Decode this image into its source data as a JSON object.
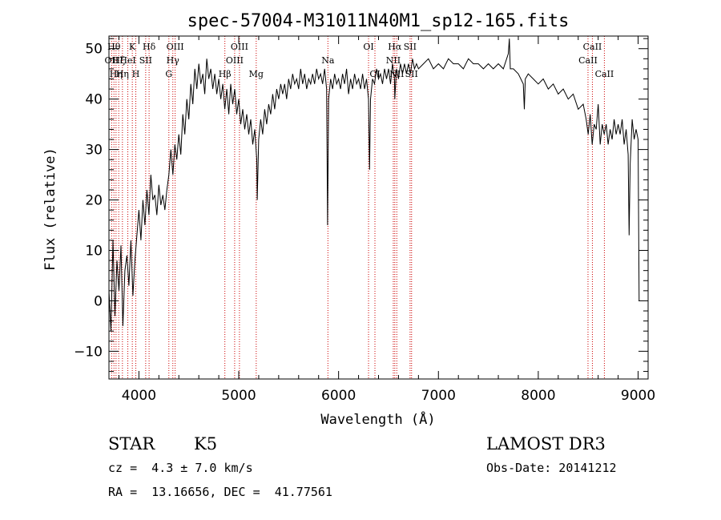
{
  "chart_data": {
    "type": "line",
    "title": "spec-57004-M31011N40M1_sp12-165.fits",
    "xlabel": "Wavelength (Å)",
    "ylabel": "Flux (relative)",
    "xlim": [
      3700,
      9100
    ],
    "ylim": [
      -15.5,
      52.5
    ],
    "xticks": [
      4000,
      5000,
      6000,
      7000,
      8000,
      9000
    ],
    "xtick_labels": [
      "4000",
      "5000",
      "6000",
      "7000",
      "8000",
      "9000"
    ],
    "yticks": [
      -10,
      0,
      10,
      20,
      30,
      40,
      50
    ],
    "ytick_labels": [
      "−10",
      "0",
      "10",
      "20",
      "30",
      "40",
      "50"
    ],
    "series": [
      {
        "name": "flux",
        "color": "#000000",
        "points": [
          [
            3700,
            2
          ],
          [
            3720,
            -6
          ],
          [
            3740,
            12
          ],
          [
            3760,
            -3
          ],
          [
            3780,
            8
          ],
          [
            3800,
            2
          ],
          [
            3820,
            11
          ],
          [
            3840,
            -5
          ],
          [
            3860,
            6
          ],
          [
            3880,
            9
          ],
          [
            3900,
            3
          ],
          [
            3920,
            12
          ],
          [
            3940,
            1
          ],
          [
            3960,
            8
          ],
          [
            3980,
            13
          ],
          [
            4000,
            18
          ],
          [
            4020,
            12
          ],
          [
            4040,
            20
          ],
          [
            4060,
            15
          ],
          [
            4080,
            22
          ],
          [
            4100,
            17
          ],
          [
            4120,
            25
          ],
          [
            4140,
            20
          ],
          [
            4160,
            21
          ],
          [
            4180,
            17
          ],
          [
            4200,
            23
          ],
          [
            4220,
            19
          ],
          [
            4240,
            21
          ],
          [
            4260,
            18
          ],
          [
            4280,
            22
          ],
          [
            4300,
            25
          ],
          [
            4320,
            30
          ],
          [
            4340,
            25
          ],
          [
            4360,
            31
          ],
          [
            4380,
            28
          ],
          [
            4400,
            33
          ],
          [
            4420,
            29
          ],
          [
            4440,
            37
          ],
          [
            4460,
            33
          ],
          [
            4480,
            40
          ],
          [
            4500,
            36
          ],
          [
            4520,
            43
          ],
          [
            4540,
            39
          ],
          [
            4560,
            46
          ],
          [
            4580,
            42
          ],
          [
            4600,
            47
          ],
          [
            4620,
            43
          ],
          [
            4640,
            45
          ],
          [
            4660,
            41
          ],
          [
            4680,
            48
          ],
          [
            4700,
            44
          ],
          [
            4720,
            46
          ],
          [
            4740,
            42
          ],
          [
            4760,
            45
          ],
          [
            4780,
            41
          ],
          [
            4800,
            44
          ],
          [
            4820,
            40
          ],
          [
            4840,
            43
          ],
          [
            4860,
            38
          ],
          [
            4880,
            42
          ],
          [
            4900,
            37
          ],
          [
            4920,
            43
          ],
          [
            4940,
            39
          ],
          [
            4960,
            42
          ],
          [
            4980,
            37
          ],
          [
            5000,
            40
          ],
          [
            5020,
            35
          ],
          [
            5040,
            38
          ],
          [
            5060,
            34
          ],
          [
            5080,
            37
          ],
          [
            5100,
            33
          ],
          [
            5120,
            36
          ],
          [
            5140,
            31
          ],
          [
            5160,
            34
          ],
          [
            5180,
            28
          ],
          [
            5185,
            20
          ],
          [
            5200,
            32
          ],
          [
            5220,
            36
          ],
          [
            5240,
            33
          ],
          [
            5260,
            38
          ],
          [
            5280,
            35
          ],
          [
            5300,
            39
          ],
          [
            5320,
            37
          ],
          [
            5340,
            41
          ],
          [
            5360,
            38
          ],
          [
            5380,
            42
          ],
          [
            5400,
            40
          ],
          [
            5420,
            43
          ],
          [
            5440,
            41
          ],
          [
            5460,
            43
          ],
          [
            5480,
            40
          ],
          [
            5500,
            44
          ],
          [
            5520,
            42
          ],
          [
            5540,
            45
          ],
          [
            5560,
            43
          ],
          [
            5580,
            44
          ],
          [
            5600,
            42
          ],
          [
            5620,
            46
          ],
          [
            5640,
            43
          ],
          [
            5660,
            45
          ],
          [
            5680,
            42
          ],
          [
            5700,
            44
          ],
          [
            5720,
            43
          ],
          [
            5740,
            45
          ],
          [
            5760,
            43
          ],
          [
            5780,
            46
          ],
          [
            5800,
            44
          ],
          [
            5820,
            45
          ],
          [
            5840,
            43
          ],
          [
            5860,
            46
          ],
          [
            5880,
            42
          ],
          [
            5890,
            15
          ],
          [
            5900,
            40
          ],
          [
            5920,
            44
          ],
          [
            5940,
            42
          ],
          [
            5960,
            45
          ],
          [
            5980,
            43
          ],
          [
            6000,
            44
          ],
          [
            6020,
            42
          ],
          [
            6040,
            45
          ],
          [
            6060,
            43
          ],
          [
            6080,
            46
          ],
          [
            6100,
            41
          ],
          [
            6120,
            44
          ],
          [
            6140,
            42
          ],
          [
            6160,
            45
          ],
          [
            6180,
            43
          ],
          [
            6200,
            44
          ],
          [
            6220,
            42
          ],
          [
            6240,
            45
          ],
          [
            6260,
            42
          ],
          [
            6280,
            44
          ],
          [
            6300,
            40
          ],
          [
            6310,
            26
          ],
          [
            6320,
            40
          ],
          [
            6340,
            44
          ],
          [
            6360,
            43
          ],
          [
            6380,
            46
          ],
          [
            6400,
            44
          ],
          [
            6420,
            45
          ],
          [
            6440,
            43
          ],
          [
            6460,
            46
          ],
          [
            6480,
            44
          ],
          [
            6500,
            46
          ],
          [
            6520,
            43
          ],
          [
            6540,
            47
          ],
          [
            6560,
            44
          ],
          [
            6563,
            40
          ],
          [
            6580,
            46
          ],
          [
            6600,
            44
          ],
          [
            6620,
            47
          ],
          [
            6640,
            45
          ],
          [
            6660,
            47
          ],
          [
            6680,
            45
          ],
          [
            6700,
            47
          ],
          [
            6720,
            45
          ],
          [
            6740,
            48
          ],
          [
            6760,
            46
          ],
          [
            6780,
            47
          ],
          [
            6800,
            46
          ],
          [
            6850,
            47
          ],
          [
            6900,
            48
          ],
          [
            6950,
            46
          ],
          [
            7000,
            47
          ],
          [
            7050,
            46
          ],
          [
            7100,
            48
          ],
          [
            7150,
            47
          ],
          [
            7200,
            47
          ],
          [
            7250,
            46
          ],
          [
            7300,
            48
          ],
          [
            7350,
            47
          ],
          [
            7400,
            47
          ],
          [
            7450,
            46
          ],
          [
            7500,
            47
          ],
          [
            7550,
            46
          ],
          [
            7600,
            47
          ],
          [
            7650,
            46
          ],
          [
            7700,
            49
          ],
          [
            7710,
            52
          ],
          [
            7720,
            46
          ],
          [
            7750,
            46
          ],
          [
            7800,
            45
          ],
          [
            7850,
            43
          ],
          [
            7860,
            38
          ],
          [
            7870,
            44
          ],
          [
            7900,
            45
          ],
          [
            7950,
            44
          ],
          [
            8000,
            43
          ],
          [
            8050,
            44
          ],
          [
            8100,
            42
          ],
          [
            8150,
            43
          ],
          [
            8200,
            41
          ],
          [
            8250,
            42
          ],
          [
            8300,
            40
          ],
          [
            8350,
            41
          ],
          [
            8400,
            38
          ],
          [
            8450,
            39
          ],
          [
            8480,
            36
          ],
          [
            8500,
            33
          ],
          [
            8520,
            37
          ],
          [
            8540,
            31
          ],
          [
            8560,
            35
          ],
          [
            8580,
            34
          ],
          [
            8600,
            39
          ],
          [
            8620,
            31
          ],
          [
            8640,
            35
          ],
          [
            8660,
            33
          ],
          [
            8680,
            35
          ],
          [
            8700,
            31
          ],
          [
            8720,
            34
          ],
          [
            8740,
            32
          ],
          [
            8760,
            36
          ],
          [
            8780,
            33
          ],
          [
            8800,
            35
          ],
          [
            8820,
            33
          ],
          [
            8840,
            36
          ],
          [
            8860,
            31
          ],
          [
            8880,
            34
          ],
          [
            8900,
            29
          ],
          [
            8910,
            13
          ],
          [
            8920,
            27
          ],
          [
            8940,
            36
          ],
          [
            8960,
            32
          ],
          [
            8980,
            34
          ],
          [
            9000,
            32
          ],
          [
            9010,
            0
          ]
        ]
      }
    ],
    "line_color": "#000000",
    "marker_color": "#cc0000",
    "line_markers": [
      {
        "wavelength": 3727,
        "label": "OII",
        "row": 2
      },
      {
        "wavelength": 3750,
        "label": "Hθ",
        "row": 1
      },
      {
        "wavelength": 3771,
        "label": "Hη",
        "row": 3
      },
      {
        "wavelength": 3798,
        "label": "Hζ",
        "row": 2
      },
      {
        "wavelength": 3835,
        "label": "Hη",
        "row": 3
      },
      {
        "wavelength": 3889,
        "label": "HeI",
        "row": 2
      },
      {
        "wavelength": 3934,
        "label": "K",
        "row": 1
      },
      {
        "wavelength": 3969,
        "label": "H",
        "row": 3
      },
      {
        "wavelength": 4068,
        "label": "SII",
        "row": 2
      },
      {
        "wavelength": 4102,
        "label": "Hδ",
        "row": 1
      },
      {
        "wavelength": 4300,
        "label": "G",
        "row": 3
      },
      {
        "wavelength": 4340,
        "label": "Hγ",
        "row": 2
      },
      {
        "wavelength": 4363,
        "label": "OIII",
        "row": 1
      },
      {
        "wavelength": 4861,
        "label": "Hβ",
        "row": 3
      },
      {
        "wavelength": 4959,
        "label": "OIII",
        "row": 2
      },
      {
        "wavelength": 5007,
        "label": "OIII",
        "row": 1
      },
      {
        "wavelength": 5175,
        "label": "Mg",
        "row": 3
      },
      {
        "wavelength": 5893,
        "label": "Na",
        "row": 2
      },
      {
        "wavelength": 6300,
        "label": "OI",
        "row": 1
      },
      {
        "wavelength": 6364,
        "label": "OI",
        "row": 3
      },
      {
        "wavelength": 6548,
        "label": "NII",
        "row": 2
      },
      {
        "wavelength": 6563,
        "label": "Hα",
        "row": 1
      },
      {
        "wavelength": 6583,
        "label": "NII",
        "row": 3
      },
      {
        "wavelength": 6716,
        "label": "SII",
        "row": 1
      },
      {
        "wavelength": 6731,
        "label": "SII",
        "row": 3
      },
      {
        "wavelength": 8498,
        "label": "CaII",
        "row": 2
      },
      {
        "wavelength": 8542,
        "label": "CaII",
        "row": 1
      },
      {
        "wavelength": 8662,
        "label": "CaII",
        "row": 3
      }
    ]
  },
  "info": {
    "object_class": "STAR",
    "subclass": "K5",
    "survey": "LAMOST DR3",
    "redshift": "cz =  4.3 ± 7.0 km/s",
    "obs_date": "Obs-Date: 20141212",
    "coords": "RA =  13.16656, DEC =  41.77561"
  }
}
